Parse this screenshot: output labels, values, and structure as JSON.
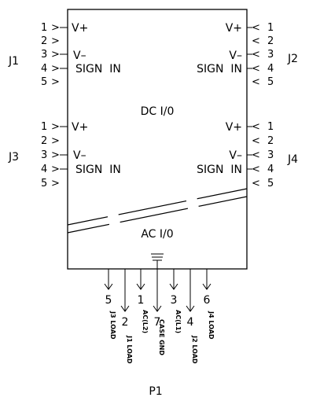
{
  "connectors": {
    "J1": "J1",
    "J2": "J2",
    "J3": "J3",
    "J4": "J4",
    "P1": "P1"
  },
  "box": {
    "dc_label": "DC I/0",
    "ac_label": "AC I/0"
  },
  "pin_numbers": [
    "1",
    "2",
    "3",
    "4",
    "5"
  ],
  "left_arrow_glyph": ">",
  "right_arrow_glyph": "<",
  "signals": {
    "vplus": "V+",
    "vminus": "V–",
    "sign_in": "SIGN  IN"
  },
  "bottom_pins": [
    {
      "num": "5",
      "desc": "J3 LOAD"
    },
    {
      "num": "2",
      "desc": "J1 LOAD"
    },
    {
      "num": "1",
      "desc": "AC(L2)"
    },
    {
      "num": "7",
      "desc": "CASE GND"
    },
    {
      "num": "3",
      "desc": "AC(L1)"
    },
    {
      "num": "4",
      "desc": "J2 LOAD"
    },
    {
      "num": "6",
      "desc": "J4 LOAD"
    }
  ]
}
